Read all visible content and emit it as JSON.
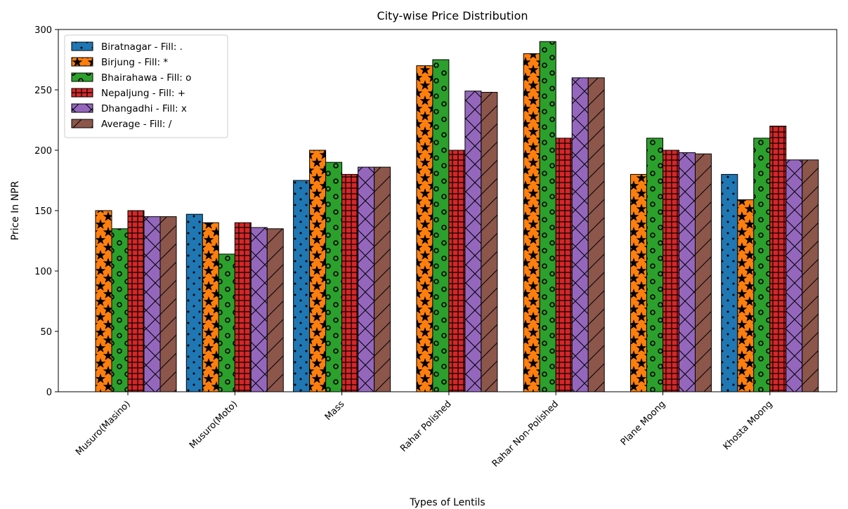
{
  "chart_data": {
    "type": "bar",
    "title": "City-wise Price Distribution",
    "xlabel": "Types of Lentils",
    "ylabel": "Price In NPR",
    "ylim": [
      0,
      300
    ],
    "yticks": [
      0,
      50,
      100,
      150,
      200,
      250,
      300
    ],
    "grid": false,
    "legend_position": "top-left",
    "categories": [
      "Musuro(Masino)",
      "Musuro(Moto)",
      "Mass",
      "Rahar Polished",
      "Rahar Non-Polished",
      "Plane Moong",
      "Khosta Moong"
    ],
    "series": [
      {
        "name": "Biratnagar - Fill: .",
        "color": "#1f77b4",
        "hatch": "dot",
        "values": [
          0,
          147,
          175,
          0,
          0,
          0,
          180
        ]
      },
      {
        "name": "Birjung - Fill: *",
        "color": "#ff7f0e",
        "hatch": "star",
        "values": [
          150,
          140,
          200,
          270,
          280,
          180,
          159
        ]
      },
      {
        "name": "Bhairahawa - Fill: o",
        "color": "#2ca02c",
        "hatch": "circle",
        "values": [
          135,
          114,
          190,
          275,
          290,
          210,
          210
        ]
      },
      {
        "name": "Nepaljung - Fill: +",
        "color": "#d62728",
        "hatch": "plus",
        "values": [
          150,
          140,
          180,
          200,
          210,
          200,
          220
        ]
      },
      {
        "name": "Dhangadhi - Fill: x",
        "color": "#9467bd",
        "hatch": "cross",
        "values": [
          145,
          136,
          186,
          249,
          260,
          198,
          192
        ]
      },
      {
        "name": "Average - Fill: /",
        "color": "#8c564b",
        "hatch": "slash",
        "values": [
          145,
          135,
          186,
          248,
          260,
          197,
          192
        ]
      }
    ]
  }
}
